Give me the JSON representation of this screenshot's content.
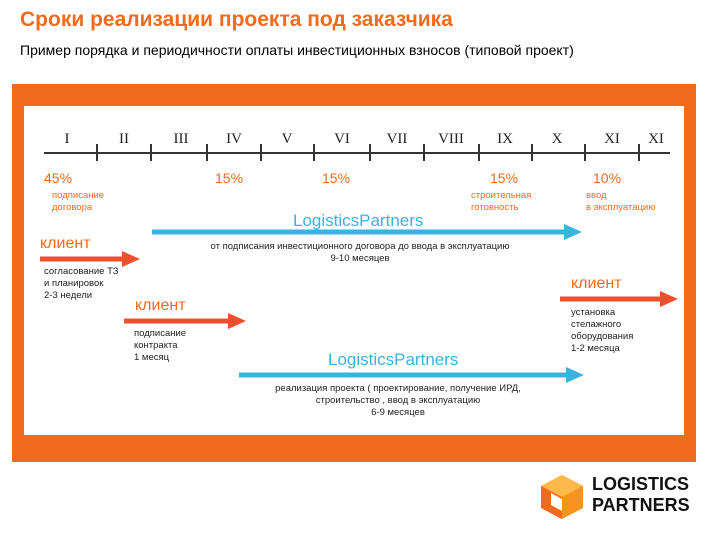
{
  "title": "Сроки реализации  проекта под заказчика",
  "subtitle": "Пример порядка и периодичности оплаты инвестиционных взносов (типовой проект)",
  "timeline": {
    "months": [
      "I",
      "II",
      "III",
      "IV",
      "V",
      "VI",
      "VII",
      "VIII",
      "IX",
      "X",
      "XI",
      "XI"
    ],
    "payments": [
      "45%",
      "15%",
      "15%",
      "15%",
      "10%"
    ],
    "notes": {
      "first": [
        "подписание",
        "договора"
      ],
      "fourth": [
        "строительная",
        "готовность"
      ],
      "fifth": [
        "ввод",
        "в эксплуатацию"
      ]
    }
  },
  "lanes": {
    "lp1": {
      "brand": "LogisticsPartners",
      "lines": [
        "от подписания инвестиционного договора до ввода в эксплуатацию",
        "9-10 месяцев"
      ]
    },
    "client1": {
      "label": "клиент",
      "lines": [
        "согласование ТЗ",
        "и планировок",
        "2-3 недели"
      ]
    },
    "client2": {
      "label": "клиент",
      "lines": [
        "подписание",
        "контракта",
        "1 месяц"
      ]
    },
    "client3": {
      "label": "клиент",
      "lines": [
        "установка",
        "стелажного",
        "оборудования",
        "1-2 месяца"
      ]
    },
    "lp2": {
      "brand": "LogisticsPartners",
      "lines": [
        "реализация проекта ( проектирование, получение ИРД,",
        "строительство , ввод в эксплуатацию",
        "6-9 месяцев"
      ]
    }
  },
  "logo": {
    "lines": [
      "LOGISTICS",
      "PARTNERS"
    ],
    "icon": "cube-logo-icon"
  },
  "colors": {
    "orange": "#f26a1b",
    "arrow_red": "#ee4f2d",
    "blue": "#3ab3e0"
  }
}
